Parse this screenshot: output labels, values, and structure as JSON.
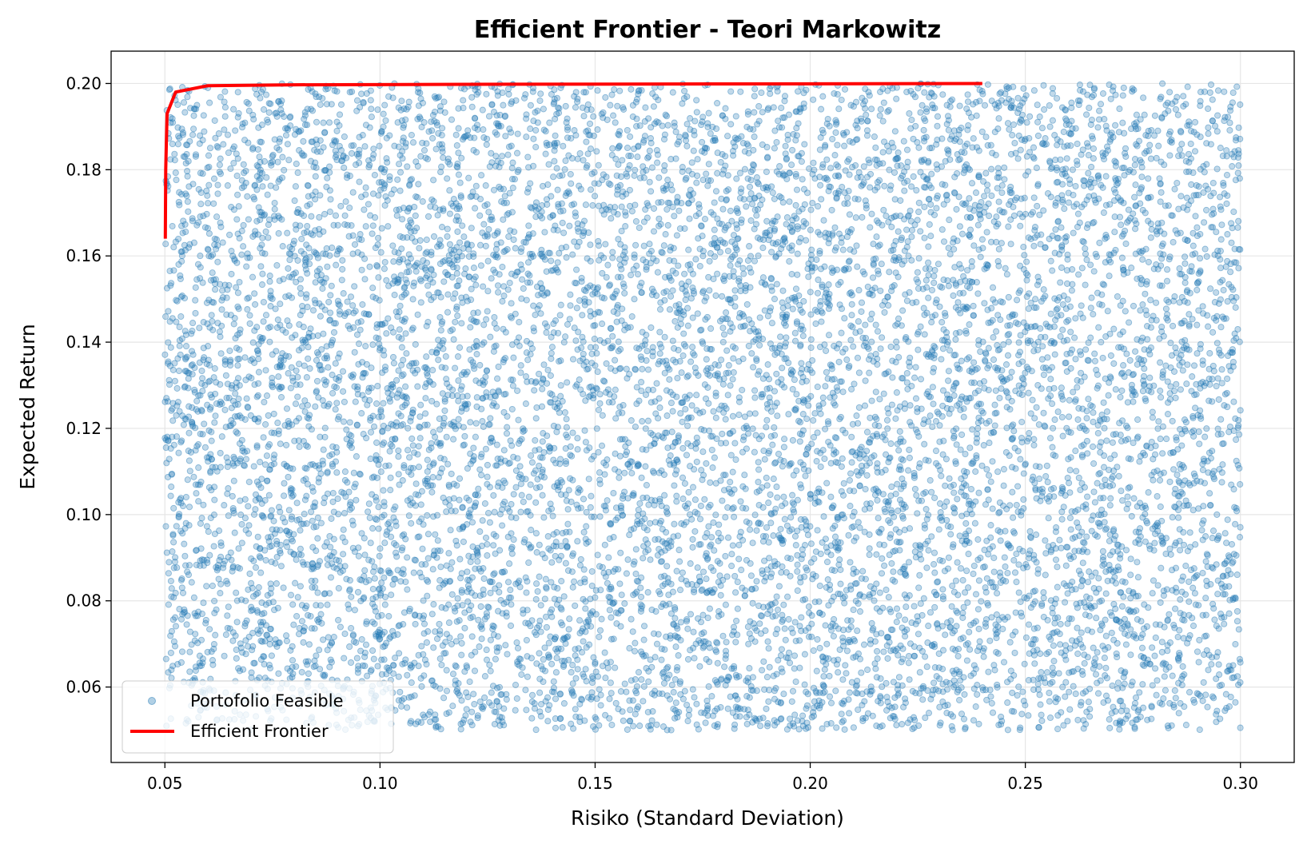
{
  "chart_data": {
    "type": "scatter",
    "title": "Efficient Frontier - Teori Markowitz",
    "xlabel": "Risiko (Standard Deviation)",
    "ylabel": "Expected Return",
    "xlim": [
      0.0375,
      0.3125
    ],
    "ylim": [
      0.0425,
      0.2075
    ],
    "x_ticks": [
      0.05,
      0.1,
      0.15,
      0.2,
      0.25,
      0.3
    ],
    "x_tick_labels": [
      "0.05",
      "0.10",
      "0.15",
      "0.20",
      "0.25",
      "0.30"
    ],
    "y_ticks": [
      0.06,
      0.08,
      0.1,
      0.12,
      0.14,
      0.16,
      0.18,
      0.2
    ],
    "y_tick_labels": [
      "0.06",
      "0.08",
      "0.10",
      "0.12",
      "0.14",
      "0.16",
      "0.18",
      "0.20"
    ],
    "grid": true,
    "legend_position": "bottom-left",
    "series": [
      {
        "name": "Portofolio Feasible",
        "kind": "scatter",
        "color": "#1f77b4",
        "x_range": [
          0.05,
          0.3
        ],
        "y_range": [
          0.05,
          0.2
        ],
        "approx_point_count": 10000,
        "distribution": "uniform"
      },
      {
        "name": "Efficient Frontier",
        "kind": "line",
        "color": "#ff0000",
        "x": [
          0.0501,
          0.0502,
          0.0505,
          0.0525,
          0.06,
          0.08,
          0.12,
          0.18,
          0.24
        ],
        "y": [
          0.164,
          0.18,
          0.193,
          0.198,
          0.1995,
          0.1997,
          0.1998,
          0.1999,
          0.2
        ]
      }
    ]
  }
}
